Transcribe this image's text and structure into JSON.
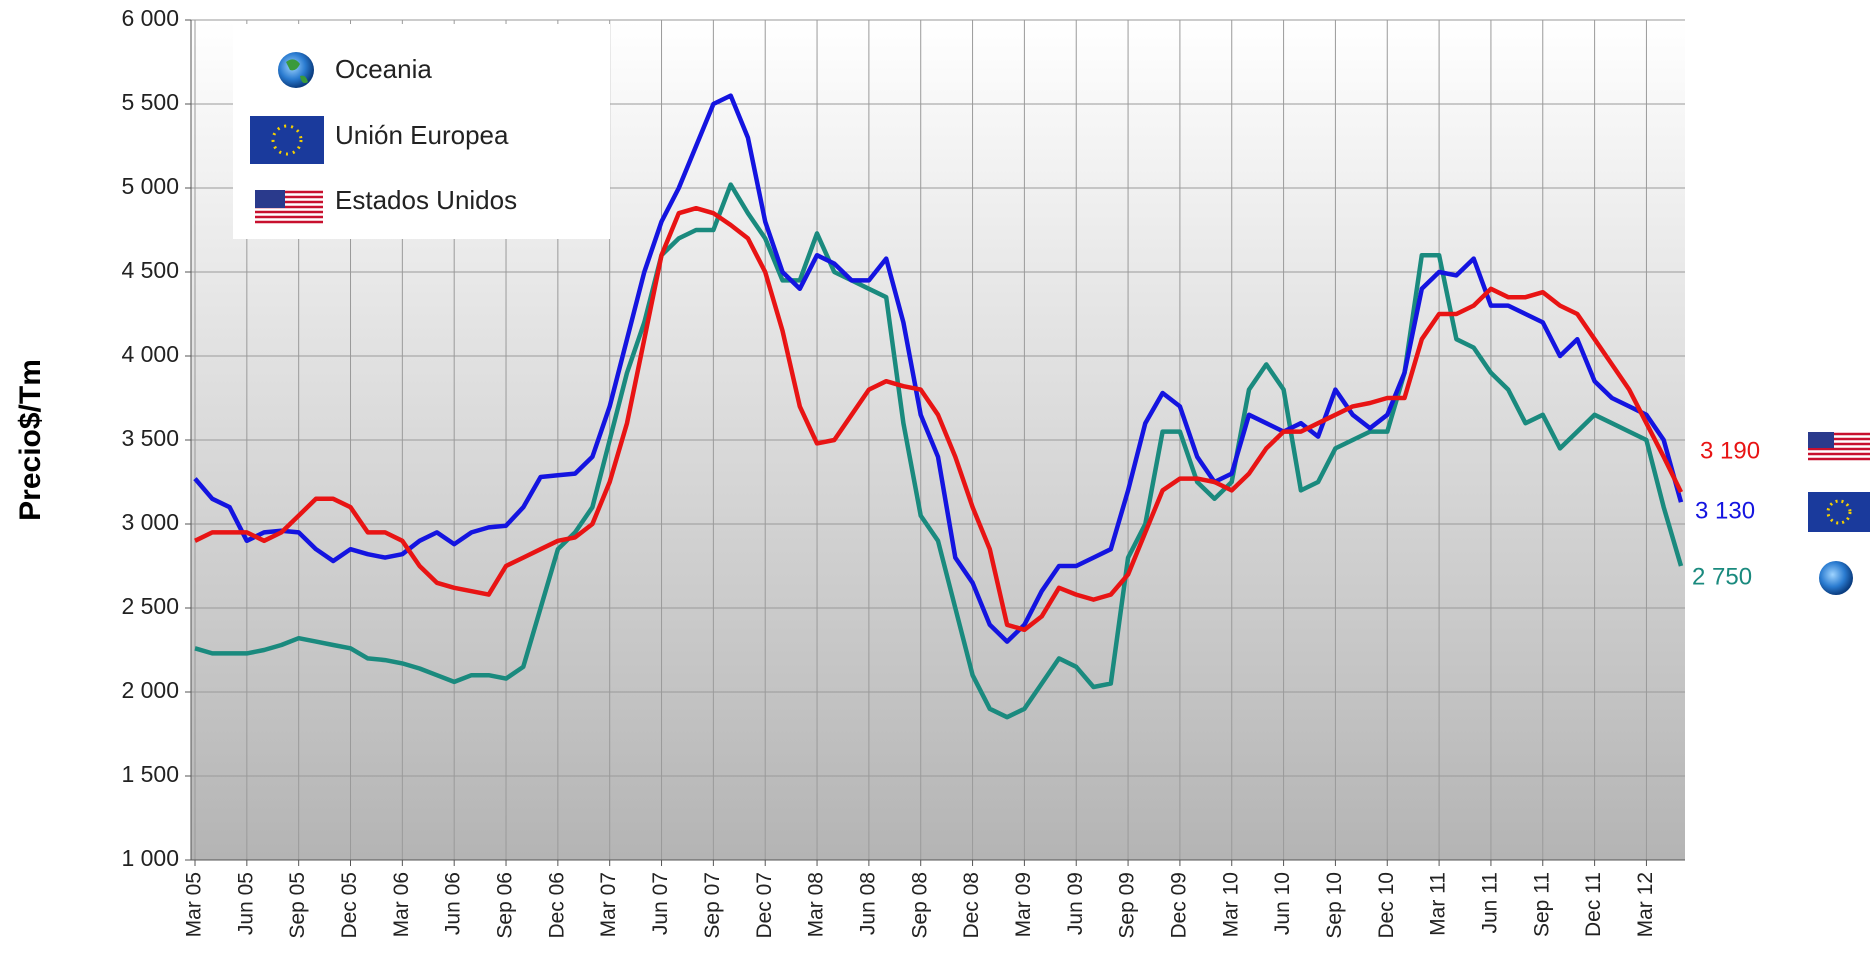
{
  "chart_data": {
    "type": "line",
    "y_label": "Precio$/Tm",
    "categories": [
      "Mar 05",
      null,
      null,
      "Jun 05",
      null,
      null,
      "Sep 05",
      null,
      null,
      "Dec 05",
      null,
      null,
      "Mar 06",
      null,
      null,
      "Jun 06",
      null,
      null,
      "Sep 06",
      null,
      null,
      "Dec 06",
      null,
      null,
      "Mar 07",
      null,
      null,
      "Jun 07",
      null,
      null,
      "Sep 07",
      null,
      null,
      "Dec 07",
      null,
      null,
      "Mar 08",
      null,
      null,
      "Jun 08",
      null,
      null,
      "Sep 08",
      null,
      null,
      "Dec 08",
      null,
      null,
      "Mar 09",
      null,
      null,
      "Jun 09",
      null,
      null,
      "Sep 09",
      null,
      null,
      "Dec 09",
      null,
      null,
      "Mar 10",
      null,
      null,
      "Jun 10",
      null,
      null,
      "Sep 10",
      null,
      null,
      "Dec 10",
      null,
      null,
      "Mar 11",
      null,
      null,
      "Jun 11",
      null,
      null,
      "Sep 11",
      null,
      null,
      "Dec 11",
      null,
      null,
      "Mar 12",
      null,
      null
    ],
    "series": [
      {
        "name": "Oceania",
        "color": "#1a8a7e",
        "end_label": "2 750",
        "values": [
          2260,
          2230,
          2230,
          2230,
          2250,
          2280,
          2320,
          2300,
          2280,
          2260,
          2200,
          2190,
          2170,
          2140,
          2100,
          2060,
          2100,
          2100,
          2080,
          2150,
          2500,
          2850,
          2950,
          3100,
          3500,
          3900,
          4200,
          4600,
          4700,
          4750,
          4750,
          5020,
          4850,
          4700,
          4450,
          4450,
          4730,
          4500,
          4450,
          4400,
          4350,
          3600,
          3050,
          2900,
          2500,
          2100,
          1900,
          1850,
          1900,
          2050,
          2200,
          2150,
          2030,
          2050,
          2800,
          3000,
          3550,
          3550,
          3250,
          3150,
          3250,
          3800,
          3950,
          3800,
          3200,
          3250,
          3450,
          3500,
          3550,
          3550,
          3900,
          4600,
          4600,
          4100,
          4050,
          3900,
          3800,
          3600,
          3650,
          3450,
          3550,
          3650,
          3600,
          3550,
          3500,
          3100,
          2750
        ]
      },
      {
        "name": "Unión Europea",
        "color": "#1414e0",
        "end_label": "3 130",
        "values": [
          3270,
          3150,
          3100,
          2900,
          2950,
          2960,
          2950,
          2850,
          2780,
          2850,
          2820,
          2800,
          2820,
          2900,
          2950,
          2880,
          2950,
          2980,
          2990,
          3100,
          3280,
          3290,
          3300,
          3400,
          3700,
          4100,
          4500,
          4800,
          5000,
          5250,
          5500,
          5550,
          5300,
          4800,
          4500,
          4400,
          4600,
          4550,
          4450,
          4450,
          4580,
          4200,
          3650,
          3400,
          2800,
          2650,
          2400,
          2300,
          2400,
          2600,
          2750,
          2750,
          2800,
          2850,
          3200,
          3600,
          3780,
          3700,
          3400,
          3250,
          3300,
          3650,
          3600,
          3550,
          3600,
          3520,
          3800,
          3650,
          3570,
          3650,
          3900,
          4400,
          4500,
          4480,
          4580,
          4300,
          4300,
          4250,
          4200,
          4000,
          4100,
          3850,
          3750,
          3700,
          3650,
          3500,
          3130
        ]
      },
      {
        "name": "Estados Unidos",
        "color": "#e81414",
        "end_label": "3 190",
        "values": [
          2900,
          2950,
          2950,
          2950,
          2900,
          2950,
          3050,
          3150,
          3150,
          3100,
          2950,
          2950,
          2900,
          2750,
          2650,
          2620,
          2600,
          2580,
          2750,
          2800,
          2850,
          2900,
          2920,
          3000,
          3250,
          3600,
          4100,
          4600,
          4850,
          4880,
          4850,
          4780,
          4700,
          4500,
          4150,
          3700,
          3480,
          3500,
          3650,
          3800,
          3850,
          3820,
          3800,
          3650,
          3400,
          3100,
          2850,
          2400,
          2370,
          2450,
          2620,
          2580,
          2550,
          2580,
          2700,
          2950,
          3200,
          3270,
          3270,
          3250,
          3200,
          3300,
          3450,
          3550,
          3550,
          3600,
          3650,
          3700,
          3720,
          3750,
          3750,
          4100,
          4250,
          4250,
          4300,
          4400,
          4350,
          4350,
          4380,
          4300,
          4250,
          4100,
          3950,
          3800,
          3600,
          3400,
          3190
        ]
      }
    ],
    "ylim": [
      1000,
      6000
    ],
    "yticks": [
      {
        "value": 1000,
        "label": "1 000"
      },
      {
        "value": 1500,
        "label": "1 500"
      },
      {
        "value": 2000,
        "label": "2 000"
      },
      {
        "value": 2500,
        "label": "2 500"
      },
      {
        "value": 3000,
        "label": "3 000"
      },
      {
        "value": 3500,
        "label": "3 500"
      },
      {
        "value": 4000,
        "label": "4 000"
      },
      {
        "value": 4500,
        "label": "4 500"
      },
      {
        "value": 5000,
        "label": "5 000"
      },
      {
        "value": 5500,
        "label": "5 500"
      },
      {
        "value": 6000,
        "label": "6 000"
      }
    ],
    "grid": true
  }
}
